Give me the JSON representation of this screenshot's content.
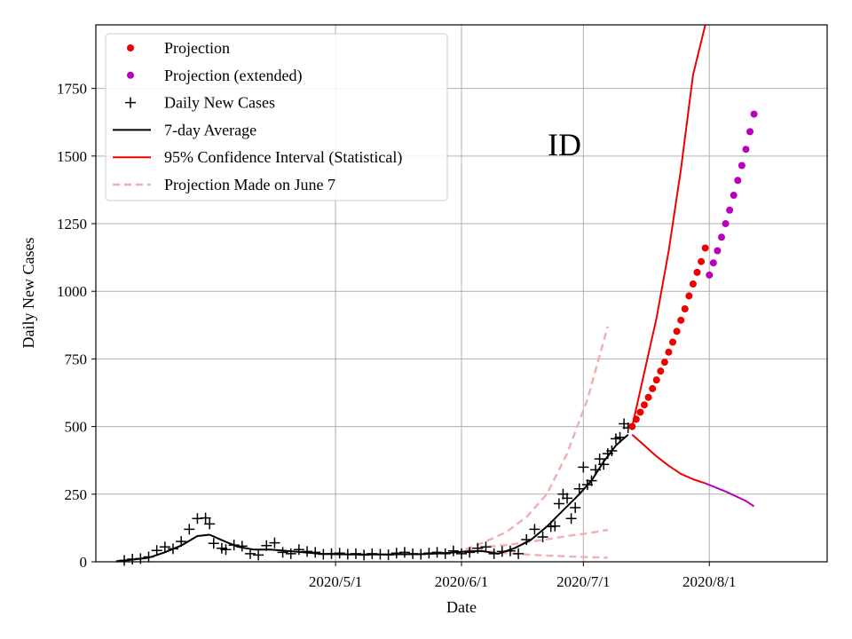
{
  "chart_data": {
    "type": "line",
    "annotation": "ID",
    "xlabel": "Date",
    "ylabel": "Daily New Cases",
    "x_ticks": [
      "2020/5/1",
      "2020/6/1",
      "2020/7/1",
      "2020/8/1"
    ],
    "y_ticks": [
      0,
      250,
      500,
      750,
      1000,
      1250,
      1500,
      1750
    ],
    "ylim": [
      0,
      1985
    ],
    "xlim": [
      "2020-03-03",
      "2020-08-30"
    ],
    "grid": true,
    "legend_position": "top-left",
    "legend": [
      {
        "label": "Projection",
        "marker": "dot",
        "color": "#ee0000"
      },
      {
        "label": "Projection (extended)",
        "marker": "dot",
        "color": "#bb00bb"
      },
      {
        "label": "Daily New Cases",
        "marker": "plus",
        "color": "#000000"
      },
      {
        "label": "7-day Average",
        "marker": "line",
        "color": "#000000"
      },
      {
        "label": "95% Confidence Interval (Statistical)",
        "marker": "line",
        "color": "#ee0000"
      },
      {
        "label": "Projection Made on June 7",
        "marker": "dash",
        "color": "#f4b0b0"
      }
    ],
    "series": [
      {
        "name": "Daily New Cases",
        "x": [
          "2020-03-10",
          "2020-03-12",
          "2020-03-14",
          "2020-03-16",
          "2020-03-18",
          "2020-03-20",
          "2020-03-22",
          "2020-03-24",
          "2020-03-26",
          "2020-03-28",
          "2020-03-30",
          "2020-03-31",
          "2020-04-01",
          "2020-04-03",
          "2020-04-04",
          "2020-04-06",
          "2020-04-08",
          "2020-04-10",
          "2020-04-12",
          "2020-04-14",
          "2020-04-16",
          "2020-04-18",
          "2020-04-20",
          "2020-04-22",
          "2020-04-24",
          "2020-04-26",
          "2020-04-28",
          "2020-04-30",
          "2020-05-02",
          "2020-05-04",
          "2020-05-06",
          "2020-05-08",
          "2020-05-10",
          "2020-05-12",
          "2020-05-14",
          "2020-05-16",
          "2020-05-18",
          "2020-05-20",
          "2020-05-22",
          "2020-05-24",
          "2020-05-26",
          "2020-05-28",
          "2020-05-30",
          "2020-06-01",
          "2020-06-03",
          "2020-06-05",
          "2020-06-07",
          "2020-06-09",
          "2020-06-11",
          "2020-06-13",
          "2020-06-15",
          "2020-06-17",
          "2020-06-19",
          "2020-06-21",
          "2020-06-23",
          "2020-06-24",
          "2020-06-25",
          "2020-06-26",
          "2020-06-27",
          "2020-06-28",
          "2020-06-29",
          "2020-06-30",
          "2020-07-01",
          "2020-07-02",
          "2020-07-03",
          "2020-07-04",
          "2020-07-05",
          "2020-07-06",
          "2020-07-07",
          "2020-07-08",
          "2020-07-09",
          "2020-07-10",
          "2020-07-11",
          "2020-07-12"
        ],
        "values": [
          5,
          10,
          12,
          18,
          42,
          55,
          48,
          75,
          120,
          160,
          162,
          140,
          68,
          50,
          45,
          62,
          58,
          30,
          25,
          60,
          70,
          35,
          30,
          45,
          38,
          35,
          28,
          30,
          32,
          28,
          30,
          25,
          30,
          28,
          26,
          32,
          35,
          30,
          28,
          32,
          35,
          30,
          40,
          30,
          35,
          50,
          55,
          30,
          38,
          40,
          30,
          82,
          120,
          92,
          130,
          132,
          215,
          250,
          235,
          160,
          200,
          270,
          350,
          285,
          300,
          340,
          380,
          360,
          400,
          410,
          455,
          460,
          510,
          495
        ]
      },
      {
        "name": "7-day Average",
        "x": [
          "2020-03-08",
          "2020-03-12",
          "2020-03-16",
          "2020-03-20",
          "2020-03-24",
          "2020-03-28",
          "2020-03-31",
          "2020-04-03",
          "2020-04-07",
          "2020-04-11",
          "2020-04-15",
          "2020-04-19",
          "2020-04-23",
          "2020-04-27",
          "2020-05-01",
          "2020-05-05",
          "2020-05-09",
          "2020-05-13",
          "2020-05-17",
          "2020-05-21",
          "2020-05-25",
          "2020-05-29",
          "2020-06-02",
          "2020-06-06",
          "2020-06-10",
          "2020-06-14",
          "2020-06-18",
          "2020-06-22",
          "2020-06-26",
          "2020-06-30",
          "2020-07-03",
          "2020-07-06",
          "2020-07-09",
          "2020-07-12"
        ],
        "values": [
          2,
          8,
          15,
          35,
          60,
          95,
          100,
          80,
          55,
          45,
          45,
          40,
          35,
          30,
          28,
          27,
          27,
          27,
          28,
          28,
          30,
          33,
          38,
          40,
          30,
          50,
          80,
          130,
          190,
          250,
          300,
          370,
          430,
          470
        ]
      },
      {
        "name": "95% Confidence Interval (Statistical) upper",
        "x": [
          "2020-07-13",
          "2020-07-16",
          "2020-07-19",
          "2020-07-22",
          "2020-07-25",
          "2020-07-28",
          "2020-07-31"
        ],
        "values": [
          500,
          700,
          900,
          1150,
          1450,
          1800,
          1985
        ]
      },
      {
        "name": "95% Confidence Interval (Statistical) lower",
        "x": [
          "2020-07-13",
          "2020-07-16",
          "2020-07-19",
          "2020-07-22",
          "2020-07-25",
          "2020-07-28",
          "2020-07-31"
        ],
        "values": [
          470,
          430,
          390,
          355,
          325,
          305,
          290
        ]
      },
      {
        "name": "Extended lower bound",
        "x": [
          "2020-07-31",
          "2020-08-05",
          "2020-08-10",
          "2020-08-12"
        ],
        "values": [
          290,
          260,
          225,
          205
        ]
      },
      {
        "name": "Projection",
        "x": [
          "2020-07-13",
          "2020-07-14",
          "2020-07-15",
          "2020-07-16",
          "2020-07-17",
          "2020-07-18",
          "2020-07-19",
          "2020-07-20",
          "2020-07-21",
          "2020-07-22",
          "2020-07-23",
          "2020-07-24",
          "2020-07-25",
          "2020-07-26",
          "2020-07-27",
          "2020-07-28",
          "2020-07-29",
          "2020-07-30",
          "2020-07-31"
        ],
        "values": [
          500,
          527,
          553,
          580,
          608,
          640,
          672,
          705,
          738,
          775,
          812,
          852,
          893,
          935,
          983,
          1027,
          1070,
          1110,
          1160
        ]
      },
      {
        "name": "Projection (extended)",
        "x": [
          "2020-08-01",
          "2020-08-02",
          "2020-08-03",
          "2020-08-04",
          "2020-08-05",
          "2020-08-06",
          "2020-08-07",
          "2020-08-08",
          "2020-08-09",
          "2020-08-10",
          "2020-08-11",
          "2020-08-12"
        ],
        "values": [
          1060,
          1105,
          1150,
          1200,
          1250,
          1300,
          1355,
          1410,
          1465,
          1525,
          1590,
          1655
        ]
      },
      {
        "name": "Projection Made on June 7 upper",
        "x": [
          "2020-06-02",
          "2020-06-07",
          "2020-06-12",
          "2020-06-17",
          "2020-06-22",
          "2020-06-27",
          "2020-07-02",
          "2020-07-07"
        ],
        "values": [
          45,
          75,
          110,
          165,
          250,
          400,
          600,
          870
        ]
      },
      {
        "name": "Projection Made on June 7 middle",
        "x": [
          "2020-06-02",
          "2020-06-07",
          "2020-06-12",
          "2020-06-17",
          "2020-06-22",
          "2020-06-27",
          "2020-07-02",
          "2020-07-07"
        ],
        "values": [
          45,
          55,
          62,
          72,
          83,
          95,
          105,
          118
        ]
      },
      {
        "name": "Projection Made on June 7 lower",
        "x": [
          "2020-06-02",
          "2020-06-07",
          "2020-06-12",
          "2020-06-17",
          "2020-06-22",
          "2020-06-27",
          "2020-07-02",
          "2020-07-07"
        ],
        "values": [
          45,
          38,
          32,
          27,
          23,
          20,
          17,
          15
        ]
      }
    ]
  }
}
